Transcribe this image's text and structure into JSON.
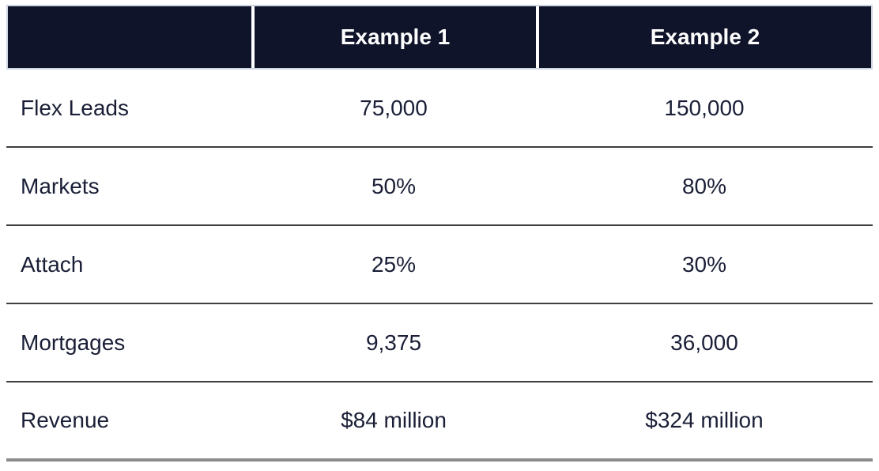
{
  "chart_data": {
    "type": "table",
    "columns": [
      "",
      "Example 1",
      "Example 2"
    ],
    "rows": [
      [
        "Flex Leads",
        "75,000",
        "150,000"
      ],
      [
        "Markets",
        "50%",
        "80%"
      ],
      [
        "Attach",
        "25%",
        "30%"
      ],
      [
        "Mortgages",
        "9,375",
        "36,000"
      ],
      [
        "Revenue",
        "$84 million",
        "$324 million"
      ]
    ]
  },
  "table": {
    "header": {
      "corner_label": "",
      "col1": "Example 1",
      "col2": "Example 2"
    },
    "rows": [
      {
        "label": "Flex Leads",
        "example1": "75,000",
        "example2": "150,000"
      },
      {
        "label": "Markets",
        "example1": "50%",
        "example2": "80%"
      },
      {
        "label": "Attach",
        "example1": "25%",
        "example2": "30%"
      },
      {
        "label": "Mortgages",
        "example1": "9,375",
        "example2": "36,000"
      },
      {
        "label": "Revenue",
        "example1": "$84 million",
        "example2": "$324 million"
      }
    ],
    "colors": {
      "header_bg": "#10142a",
      "header_text": "#ffffff",
      "body_text": "#1a1f37",
      "row_divider": "#3e3e3e",
      "bottom_divider": "#8c8c8c"
    }
  }
}
